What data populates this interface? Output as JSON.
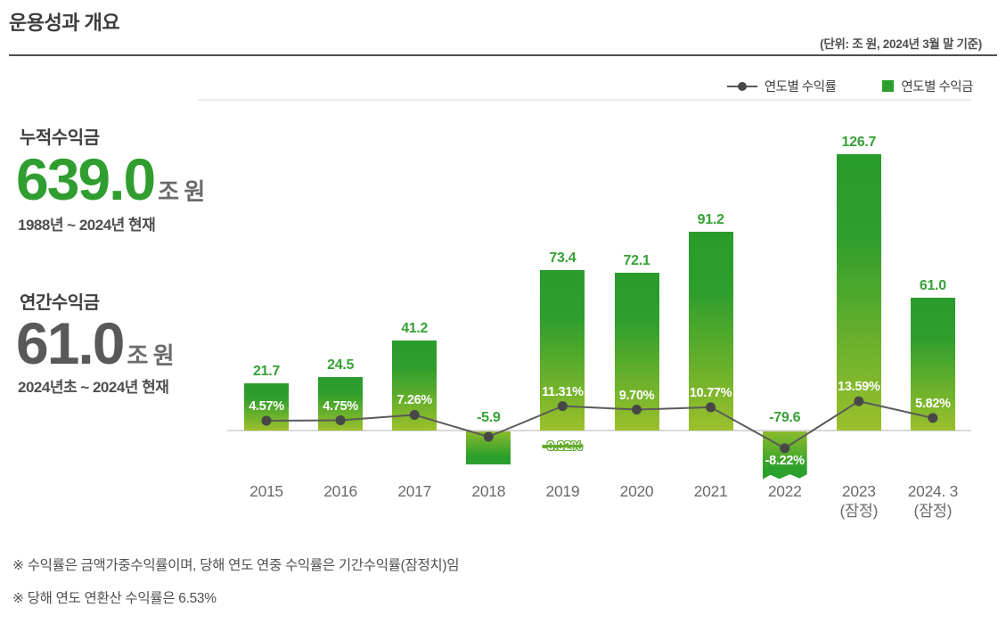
{
  "header": {
    "title": "운용성과 개요",
    "unit_note": "(단위: 조 원, 2024년 3월 말 기준)"
  },
  "legend": {
    "line_series_label": "연도별 수익률",
    "bar_series_label": "연도별 수익금"
  },
  "stats": {
    "cumulative": {
      "label": "누적수익금",
      "value": "639.0",
      "unit": "조 원",
      "period": "1988년 ~ 2024년 현재"
    },
    "annual": {
      "label": "연간수익금",
      "value": "61.0",
      "unit": "조 원",
      "period": "2024년초 ~ 2024년 현재"
    }
  },
  "chart_data": {
    "type": "bar",
    "title": "운용성과 개요",
    "unit": "조 원",
    "grid": false,
    "legend_position": "top-right",
    "categories": [
      {
        "label": "2015",
        "sub": ""
      },
      {
        "label": "2016",
        "sub": ""
      },
      {
        "label": "2017",
        "sub": ""
      },
      {
        "label": "2018",
        "sub": ""
      },
      {
        "label": "2019",
        "sub": ""
      },
      {
        "label": "2020",
        "sub": ""
      },
      {
        "label": "2021",
        "sub": ""
      },
      {
        "label": "2022",
        "sub": ""
      },
      {
        "label": "2023",
        "sub": "(잠정)"
      },
      {
        "label": "2024. 3",
        "sub": "(잠정)"
      }
    ],
    "series": [
      {
        "name": "연도별 수익금",
        "type": "bar",
        "unit": "조 원",
        "values": [
          21.7,
          24.5,
          41.2,
          -5.9,
          73.4,
          72.1,
          91.2,
          -79.6,
          126.7,
          61.0
        ],
        "labels": [
          "21.7",
          "24.5",
          "41.2",
          "-5.9",
          "73.4",
          "72.1",
          "91.2",
          "-79.6",
          "126.7",
          "61.0"
        ]
      },
      {
        "name": "연도별 수익률",
        "type": "line",
        "unit": "%",
        "values": [
          4.57,
          4.75,
          7.26,
          -0.92,
          11.31,
          9.7,
          10.77,
          -8.22,
          13.59,
          5.82
        ],
        "labels": [
          "4.57%",
          "4.75%",
          "7.26%",
          "-0.92%",
          "11.31%",
          "9.70%",
          "10.77%",
          "-8.22%",
          "13.59%",
          "5.82%"
        ]
      }
    ],
    "colors": {
      "bar_green_top": "#2a9c2b",
      "bar_green_bottom": "#9cc02c",
      "line": "#5a5a5a",
      "marker": "#474747",
      "bar_value_label": "#36a136",
      "rate_label_on_bar": "#ffffff",
      "struck_label_outline": "#63a92d"
    }
  },
  "footnotes": [
    "※ 수익률은 금액가중수익률이며, 당해 연도 연중 수익률은 기간수익률(잠정치)임",
    "※ 당해 연도 연환산 수익률은 6.53%"
  ]
}
